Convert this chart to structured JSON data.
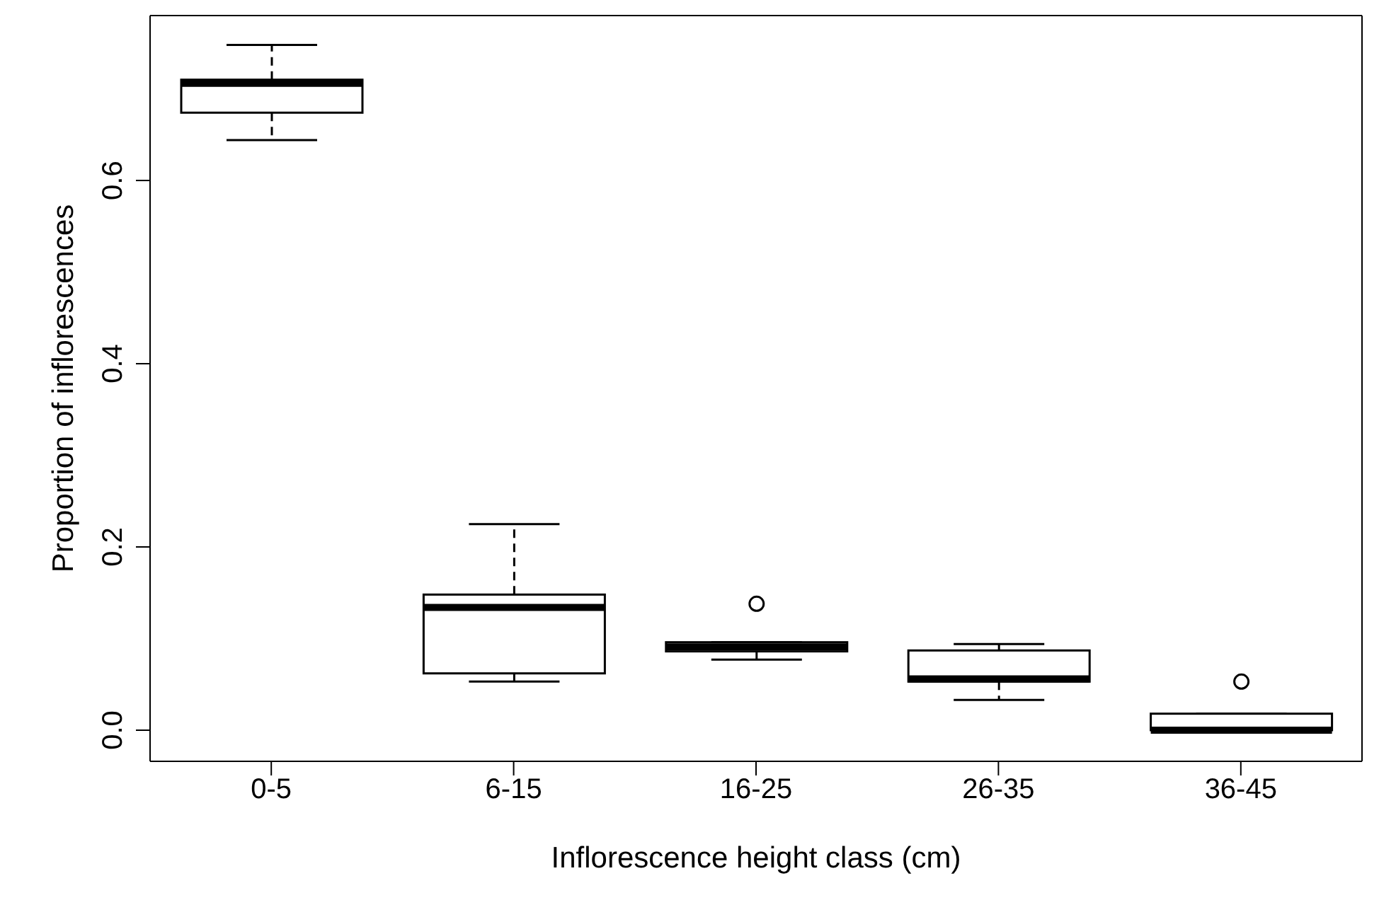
{
  "chart_data": {
    "type": "box",
    "xlabel": "Inflorescence height class (cm)",
    "ylabel": "Proportion of inflorescences",
    "categories": [
      "0-5",
      "6-15",
      "16-25",
      "26-35",
      "36-45"
    ],
    "boxes": [
      {
        "low": 0.644,
        "q1": 0.674,
        "median": 0.706,
        "q3": 0.71,
        "high": 0.748
      },
      {
        "low": 0.053,
        "q1": 0.062,
        "median": 0.134,
        "q3": 0.148,
        "high": 0.225
      },
      {
        "low": 0.077,
        "q1": 0.086,
        "median": 0.091,
        "q3": 0.096,
        "high": 0.096,
        "outliers": [
          0.138
        ]
      },
      {
        "low": 0.033,
        "q1": 0.053,
        "median": 0.056,
        "q3": 0.087,
        "high": 0.094
      },
      {
        "low": 0,
        "q1": 0,
        "median": 0,
        "q3": 0.018,
        "high": 0.018,
        "outliers": [
          0.053
        ]
      }
    ],
    "color": "#000000",
    "ylim": [
      -0.034,
      0.78
    ],
    "yticks": [
      {
        "value": 0,
        "label": "0.0"
      },
      {
        "value": 0.2,
        "label": "0.2"
      },
      {
        "value": 0.4,
        "label": "0.4"
      },
      {
        "value": 0.6,
        "label": "0.6"
      }
    ],
    "grid": false,
    "legend": false
  }
}
